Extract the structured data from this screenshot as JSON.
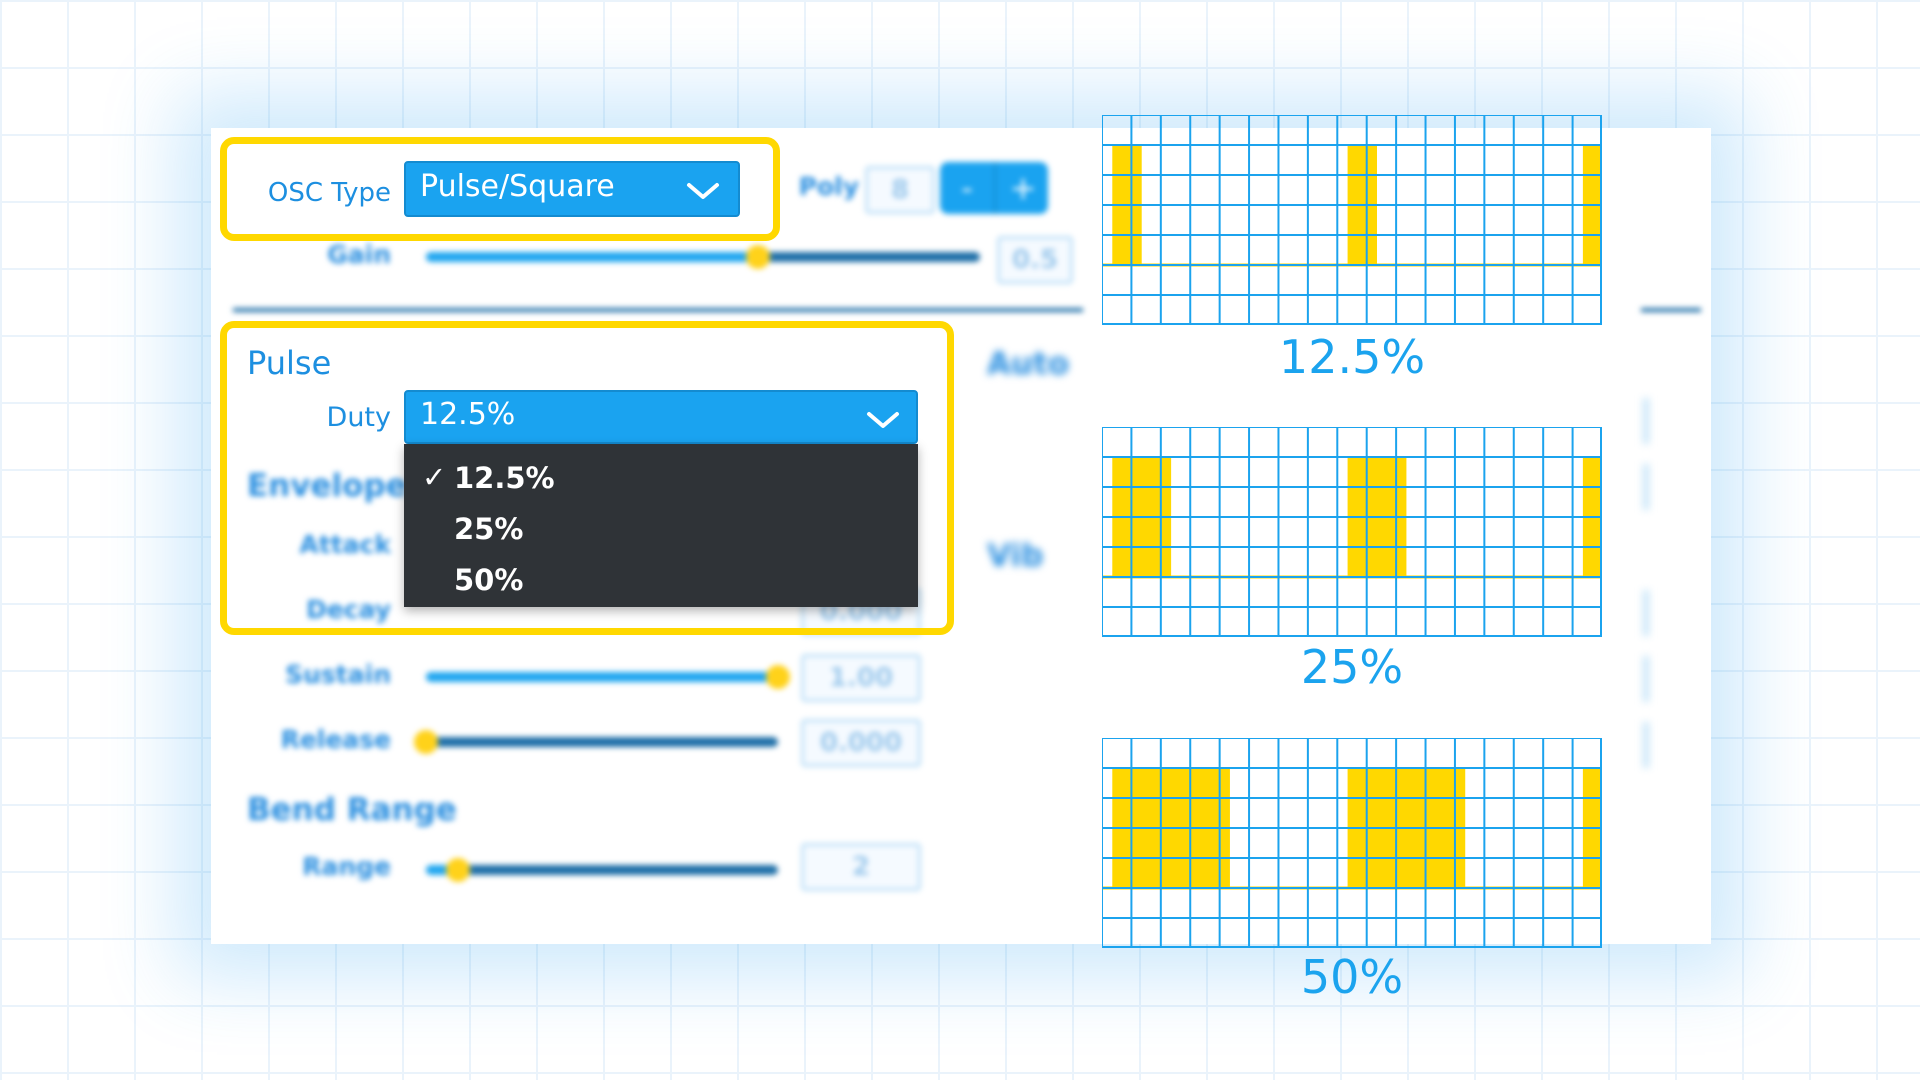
{
  "osc": {
    "type_label": "OSC Type",
    "type_value": "Pulse/Square",
    "poly_label": "Poly",
    "poly_value": "8",
    "minus": "-",
    "plus": "+",
    "gain_label": "Gain",
    "gain_level": 0.6,
    "gain_value": "0.5"
  },
  "pulse": {
    "title": "Pulse",
    "duty_label": "Duty",
    "duty_value": "12.5%",
    "menu": {
      "checkmark": "✓",
      "options": [
        "12.5%",
        "25%",
        "50%"
      ],
      "selected": "12.5%"
    }
  },
  "envelope": {
    "title": "Envelope",
    "attack_label": "Attack",
    "decay_label": "Decay",
    "decay_value": "0.000",
    "sustain_label": "Sustain",
    "sustain_value": "1.00",
    "sustain_level": 1.0,
    "release_label": "Release",
    "release_value": "0.000",
    "release_level": 0.0
  },
  "bend": {
    "title": "Bend Range",
    "range_label": "Range",
    "range_value": "2",
    "range_level": 0.09
  },
  "right_col": {
    "auto_label": "Auto",
    "vib_label": "Vib"
  },
  "duty_diagrams": {
    "diagrams": [
      {
        "label": "12.5%",
        "duty": 0.125
      },
      {
        "label": "25%",
        "duty": 0.25
      },
      {
        "label": "50%",
        "duty": 0.5
      }
    ],
    "colors": {
      "grid": "#1ba3ee",
      "pulse": "#ffd800"
    }
  }
}
